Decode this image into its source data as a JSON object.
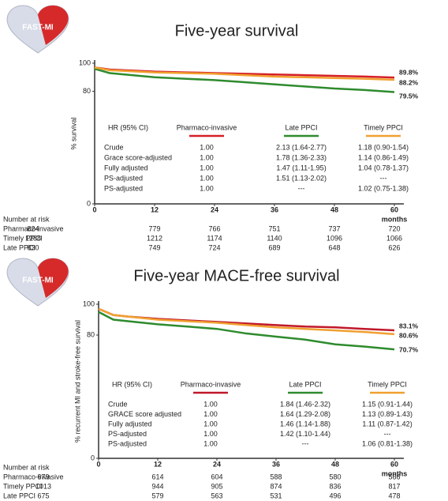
{
  "logo": "FAST-MI",
  "chart_data": [
    {
      "type": "line",
      "title": "Five-year survival",
      "y_label": "% survival",
      "x_label": "months",
      "x": [
        0,
        3,
        6,
        12,
        18,
        24,
        30,
        36,
        42,
        48,
        54,
        60
      ],
      "xlim": [
        0,
        60
      ],
      "xticks": [
        0,
        12,
        24,
        36,
        48,
        60
      ],
      "ylim": [
        0,
        100
      ],
      "yticks": [
        0,
        80,
        100
      ],
      "series": [
        {
          "name": "Pharmaco-invasive",
          "color": "#d42028",
          "values": [
            97,
            95.5,
            95,
            94,
            93.5,
            93,
            92.5,
            92,
            91.5,
            91,
            90.5,
            89.8
          ],
          "value_labels": [
            null,
            null,
            null,
            null,
            null,
            null,
            null,
            null,
            null,
            null,
            null,
            "89.8%"
          ]
        },
        {
          "name": "Late PPCI",
          "color": "#2e8b2e",
          "values": [
            96,
            93,
            92,
            90,
            89,
            88,
            86.5,
            85,
            83.5,
            82,
            81,
            79.5
          ],
          "value_labels": [
            null,
            null,
            null,
            null,
            null,
            null,
            null,
            null,
            null,
            null,
            null,
            "79.5%"
          ]
        },
        {
          "name": "Timely PPCI",
          "color": "#f0a030",
          "values": [
            97,
            95,
            94.5,
            93.5,
            93,
            92.5,
            91.5,
            90.5,
            90,
            89.5,
            89,
            88.2
          ],
          "value_labels": [
            null,
            null,
            null,
            null,
            null,
            null,
            null,
            null,
            null,
            null,
            null,
            "88.2%"
          ]
        }
      ],
      "hr_table": {
        "header": "HR (95% CI)",
        "rows": [
          [
            "Crude",
            "1.00",
            "2.13 (1.64-2.77)",
            "1.18 (0.90-1.54)"
          ],
          [
            "Grace score-adjusted",
            "1.00",
            "1.78 (1.36-2.33)",
            "1.14 (0.86-1.49)"
          ],
          [
            "Fully adjusted",
            "1.00",
            "1.47 (1.11-1.95)",
            "1.04 (0.78-1.37)"
          ],
          [
            "PS-adjusted",
            "1.00",
            "1.51 (1.13-2.02)",
            "---"
          ],
          [
            "PS-adjusted",
            "1.00",
            "---",
            "1.02 (0.75-1.38)"
          ]
        ]
      },
      "risk_table": {
        "title": "Number at risk",
        "rows": [
          {
            "name": "Pharmaco-invasive",
            "values": [
              824,
              779,
              766,
              751,
              737,
              720
            ]
          },
          {
            "name": "Timely PPCI",
            "values": [
              1288,
              1212,
              1174,
              1140,
              1096,
              1066
            ]
          },
          {
            "name": "Late PPCI",
            "values": [
              830,
              749,
              724,
              689,
              648,
              626
            ]
          }
        ]
      }
    },
    {
      "type": "line",
      "title": "Five-year MACE-free survival",
      "y_label": "% recurrent MI and stroke-free survival",
      "x_label": "months",
      "x": [
        0,
        3,
        6,
        12,
        18,
        24,
        30,
        36,
        42,
        48,
        54,
        60
      ],
      "xlim": [
        0,
        60
      ],
      "xticks": [
        0,
        12,
        24,
        36,
        48,
        60
      ],
      "ylim": [
        0,
        100
      ],
      "yticks": [
        0,
        80,
        100
      ],
      "series": [
        {
          "name": "Pharmaco-invasive",
          "color": "#c0182a",
          "values": [
            97,
            93,
            92,
            90.5,
            89.5,
            88.5,
            87.5,
            86.5,
            85.5,
            85,
            84,
            83.1
          ],
          "value_labels": [
            null,
            null,
            null,
            null,
            null,
            null,
            null,
            null,
            null,
            null,
            null,
            "83.1%"
          ]
        },
        {
          "name": "Late PPCI",
          "color": "#2e8b2e",
          "values": [
            95,
            90,
            89,
            87,
            85.5,
            84,
            81,
            79,
            77,
            74,
            72.5,
            70.7
          ],
          "value_labels": [
            null,
            null,
            null,
            null,
            null,
            null,
            null,
            null,
            null,
            null,
            null,
            "70.7%"
          ]
        },
        {
          "name": "Timely PPCI",
          "color": "#f0a030",
          "values": [
            97,
            93,
            92,
            90,
            89,
            88,
            86.5,
            85,
            84,
            83,
            82,
            80.6
          ],
          "value_labels": [
            null,
            null,
            null,
            null,
            null,
            null,
            null,
            null,
            null,
            null,
            null,
            "80.6%"
          ]
        }
      ],
      "hr_table": {
        "header": "HR (95% CI)",
        "rows": [
          [
            "Crude",
            "1.00",
            "1.84 (1.46-2.32)",
            "1.15 (0.91-1.44)"
          ],
          [
            "GRACE score adjusted",
            "1.00",
            "1.64 (1.29-2.08)",
            "1.13 (0.89-1.43)"
          ],
          [
            "Fully adjusted",
            "1.00",
            "1.46 (1.14-1.88)",
            "1.11 (0.87-1.42)"
          ],
          [
            "PS-adjusted",
            "1.00",
            "1.42 (1.10-1.44)",
            "---"
          ],
          [
            "PS-adjusted",
            "1.00",
            "---",
            "1.06 (0.81-1.38)"
          ]
        ]
      },
      "risk_table": {
        "title": "Number at risk",
        "rows": [
          {
            "name": "Pharmaco-invasive",
            "values": [
              679,
              614,
              604,
              588,
              580,
              566
            ]
          },
          {
            "name": "Timely PPCI",
            "values": [
              1013,
              944,
              905,
              874,
              836,
              817
            ]
          },
          {
            "name": "Late PPCI",
            "values": [
              675,
              579,
              563,
              531,
              496,
              478
            ]
          }
        ]
      }
    }
  ]
}
